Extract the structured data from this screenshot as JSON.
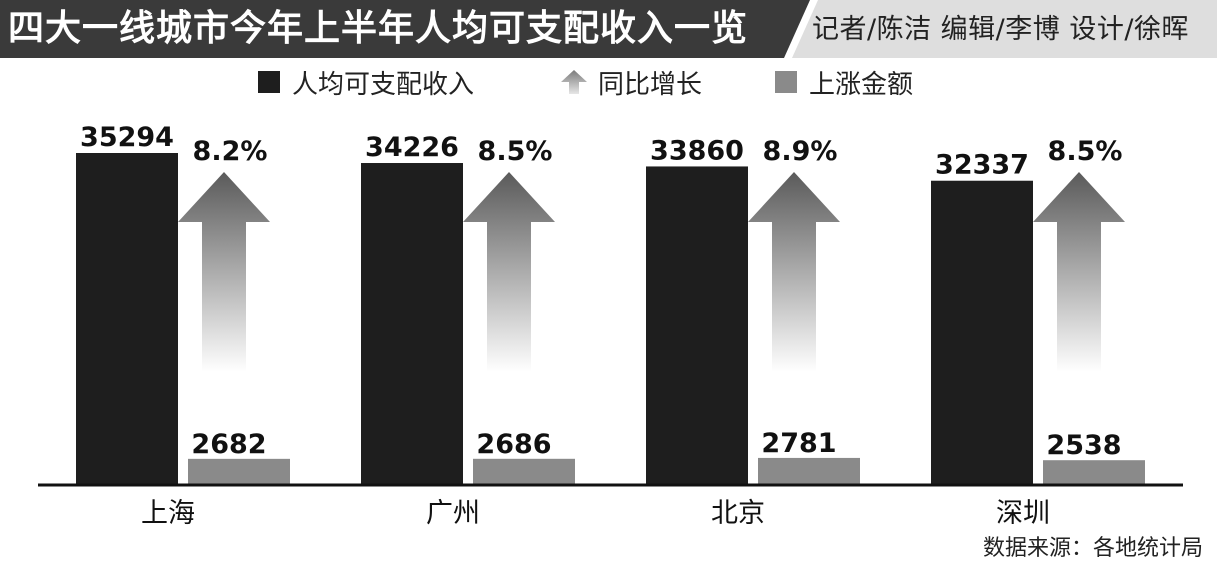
{
  "header": {
    "title": "四大一线城市今年上半年人均可支配收入一览",
    "credits": "记者/陈洁 编辑/李博  设计/徐晖"
  },
  "legend": [
    {
      "label": "人均可支配收入",
      "color": "#1e1e1e",
      "shape": "square"
    },
    {
      "label": "同比增长",
      "color": "#9a9a9a",
      "shape": "arrow"
    },
    {
      "label": "上涨金额",
      "color": "#8a8a8a",
      "shape": "square"
    }
  ],
  "source": "数据来源：各地统计局",
  "chart_data": {
    "type": "bar",
    "categories": [
      "上海",
      "广州",
      "北京",
      "深圳"
    ],
    "series": [
      {
        "name": "人均可支配收入",
        "values": [
          35294,
          34226,
          33860,
          32337
        ],
        "color": "#1e1e1e"
      },
      {
        "name": "上涨金额",
        "values": [
          2682,
          2686,
          2781,
          2538
        ],
        "color": "#8a8a8a"
      }
    ],
    "growth": {
      "name": "同比增长",
      "labels": [
        "8.2%",
        "8.5%",
        "8.9%",
        "8.5%"
      ]
    },
    "title": "四大一线城市今年上半年人均可支配收入一览",
    "grid": false,
    "legend_position": "top"
  }
}
